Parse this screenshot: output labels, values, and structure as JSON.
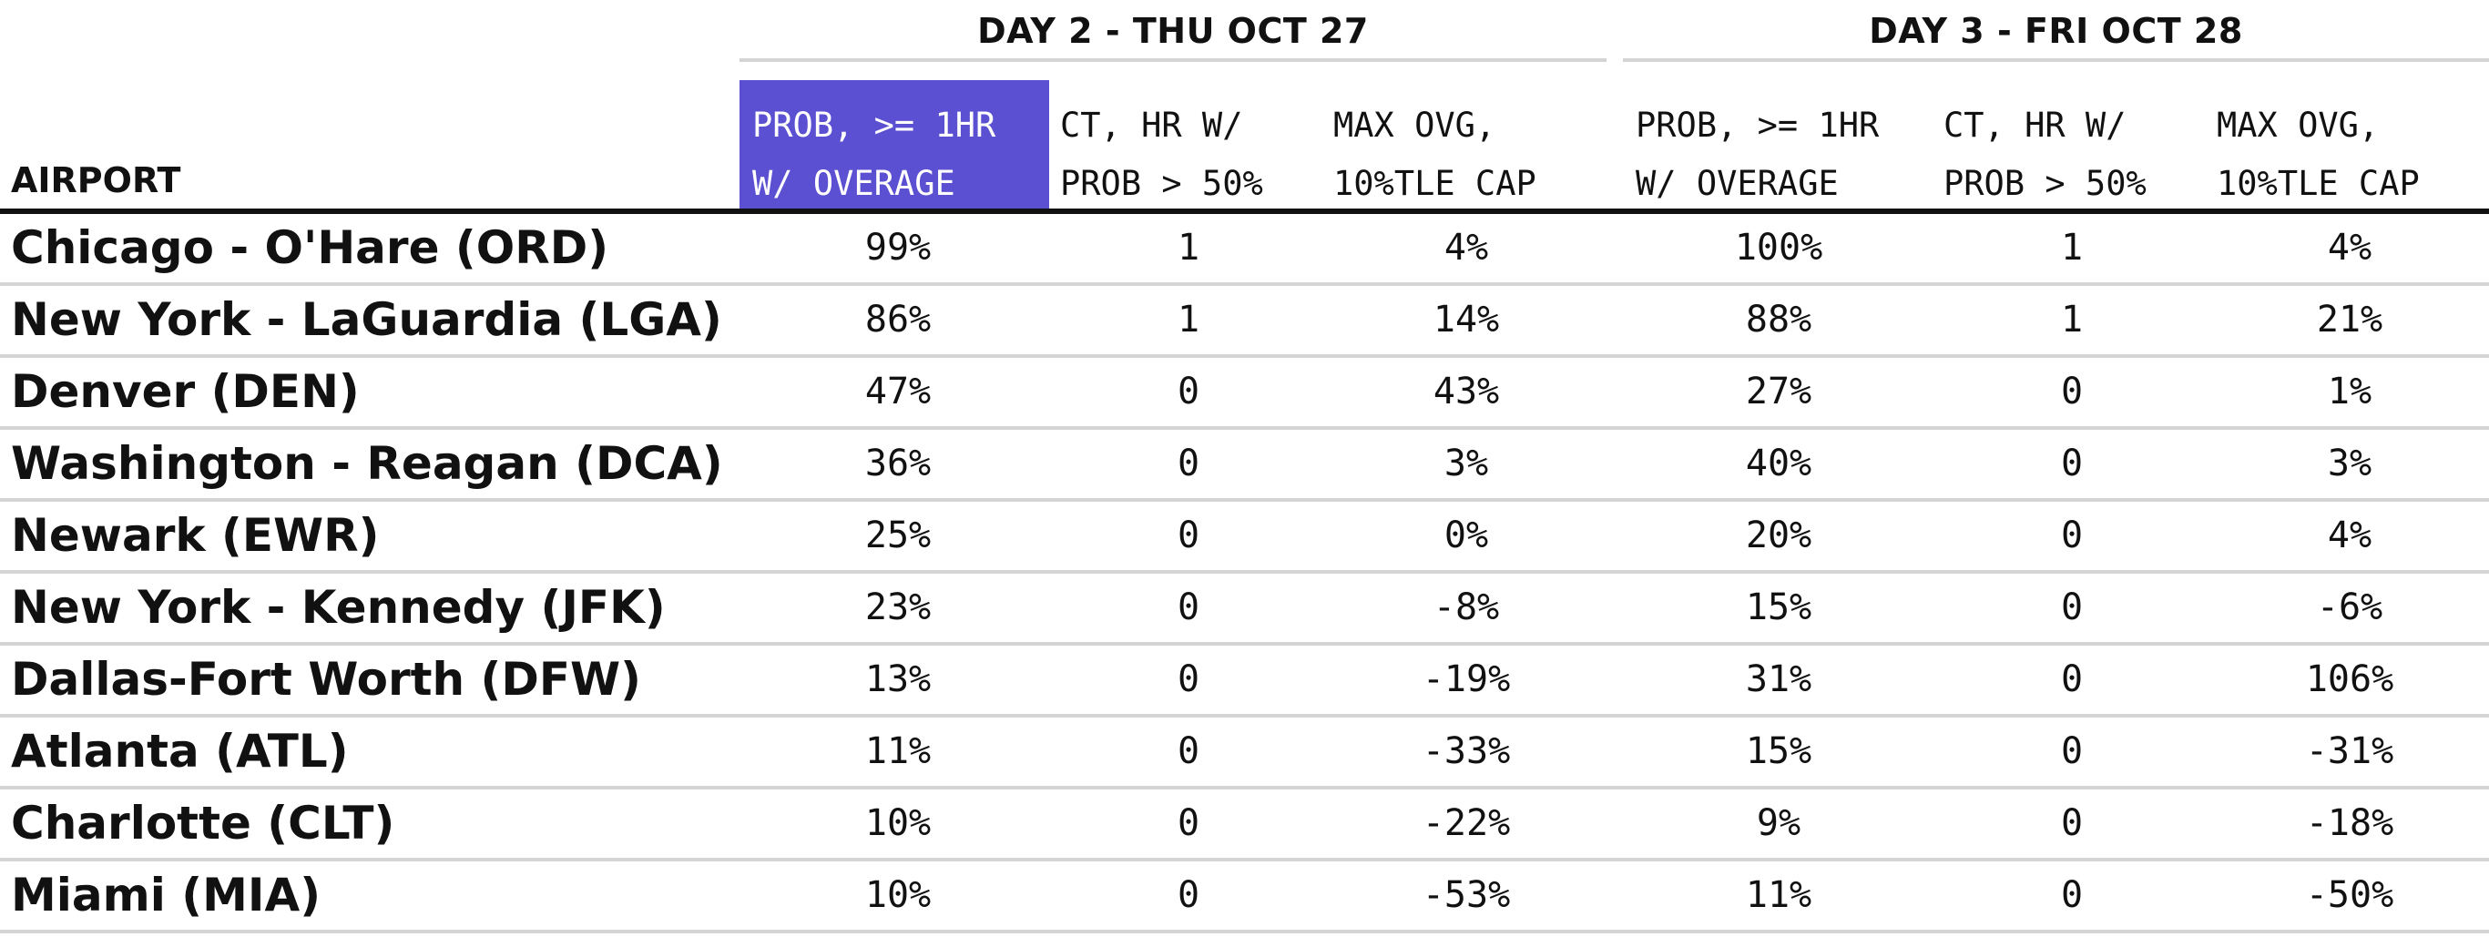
{
  "chart_data": {
    "type": "table",
    "header_highlight_color": "#5b4fd2",
    "row_label_header": "AIRPORT",
    "groups": [
      {
        "title": "DAY 2 - THU OCT 27",
        "columns": [
          {
            "line1": "PROB, >= 1HR",
            "line2": "W/ OVERAGE",
            "highlighted": true
          },
          {
            "line1": "CT, HR W/",
            "line2": "PROB > 50%",
            "highlighted": false
          },
          {
            "line1": "MAX OVG,",
            "line2": "10%TLE CAP",
            "highlighted": false
          }
        ]
      },
      {
        "title": "DAY 3 - FRI OCT 28",
        "columns": [
          {
            "line1": "PROB, >= 1HR",
            "line2": "W/ OVERAGE",
            "highlighted": false
          },
          {
            "line1": "CT, HR W/",
            "line2": "PROB > 50%",
            "highlighted": false
          },
          {
            "line1": "MAX OVG,",
            "line2": "10%TLE CAP",
            "highlighted": false
          }
        ]
      }
    ],
    "rows": [
      {
        "airport": "Chicago - O'Hare (ORD)",
        "values": [
          "99%",
          "1",
          "4%",
          "100%",
          "1",
          "4%"
        ]
      },
      {
        "airport": "New York - LaGuardia (LGA)",
        "values": [
          "86%",
          "1",
          "14%",
          "88%",
          "1",
          "21%"
        ]
      },
      {
        "airport": "Denver (DEN)",
        "values": [
          "47%",
          "0",
          "43%",
          "27%",
          "0",
          "1%"
        ]
      },
      {
        "airport": "Washington - Reagan (DCA)",
        "values": [
          "36%",
          "0",
          "3%",
          "40%",
          "0",
          "3%"
        ]
      },
      {
        "airport": "Newark (EWR)",
        "values": [
          "25%",
          "0",
          "0%",
          "20%",
          "0",
          "4%"
        ]
      },
      {
        "airport": "New York - Kennedy (JFK)",
        "values": [
          "23%",
          "0",
          "-8%",
          "15%",
          "0",
          "-6%"
        ]
      },
      {
        "airport": "Dallas-Fort Worth (DFW)",
        "values": [
          "13%",
          "0",
          "-19%",
          "31%",
          "0",
          "106%"
        ]
      },
      {
        "airport": "Atlanta (ATL)",
        "values": [
          "11%",
          "0",
          "-33%",
          "15%",
          "0",
          "-31%"
        ]
      },
      {
        "airport": "Charlotte (CLT)",
        "values": [
          "10%",
          "0",
          "-22%",
          "9%",
          "0",
          "-18%"
        ]
      },
      {
        "airport": "Miami (MIA)",
        "values": [
          "10%",
          "0",
          "-53%",
          "11%",
          "0",
          "-50%"
        ]
      }
    ]
  }
}
